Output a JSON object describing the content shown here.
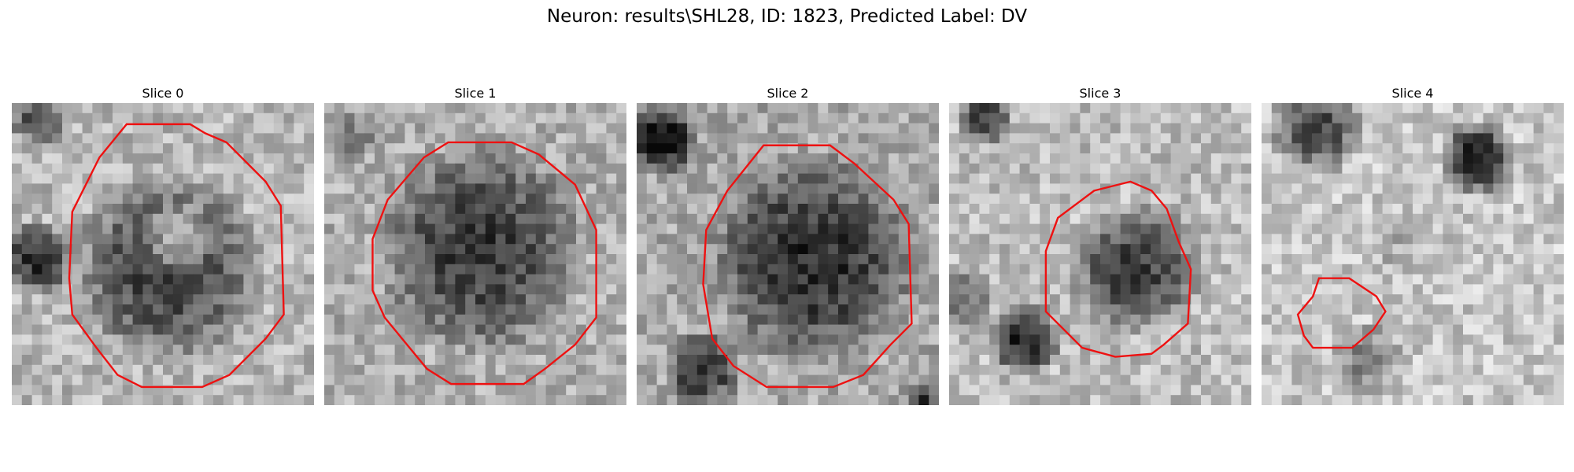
{
  "figure": {
    "title": "Neuron: results\\SHL28, ID: 1823, Predicted Label: DV"
  },
  "panels": [
    {
      "title": "Slice 0"
    },
    {
      "title": "Slice 1"
    },
    {
      "title": "Slice 2"
    },
    {
      "title": "Slice 3"
    },
    {
      "title": "Slice 4"
    }
  ],
  "colors": {
    "contour": "#ee1111"
  }
}
